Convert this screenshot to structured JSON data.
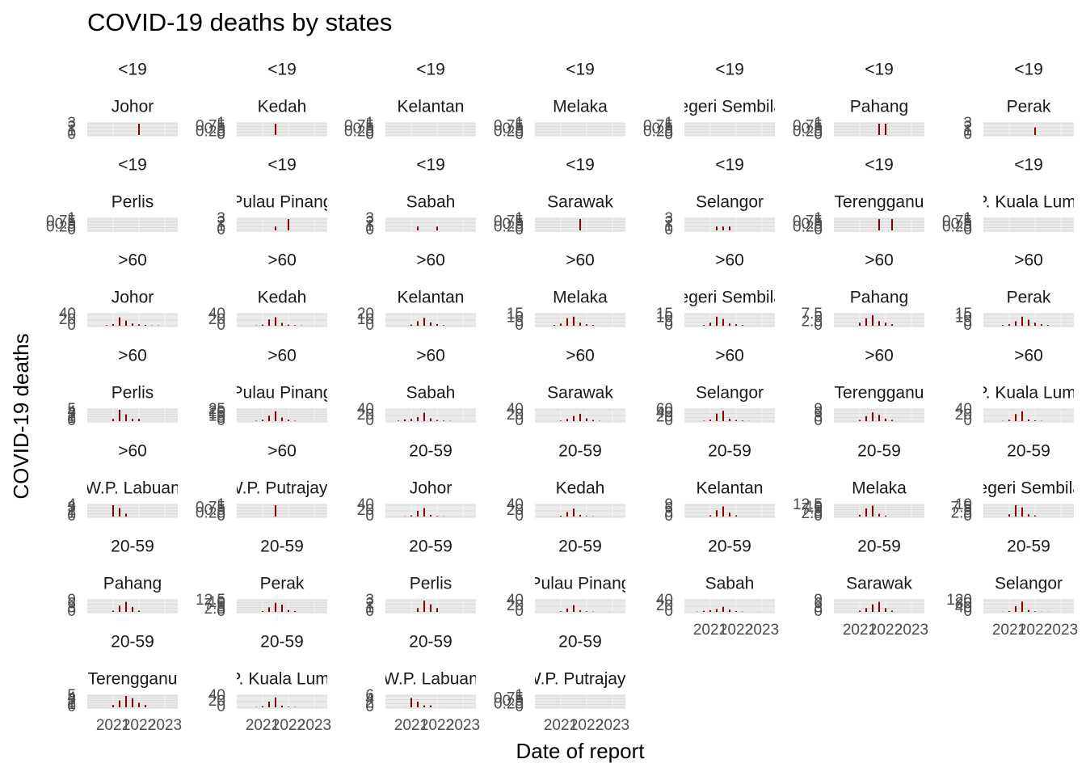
{
  "chart_data": {
    "type": "bar",
    "title": "COVID-19 deaths by states",
    "x_label": "Date of report",
    "y_label": "COVID-19 deaths",
    "color": "#8b0000",
    "x": [
      2020.25,
      2020.5,
      2020.75,
      2021,
      2021.25,
      2021.5,
      2021.75,
      2022,
      2022.25,
      2022.5,
      2022.75,
      2023
    ],
    "xlim": [
      2020,
      2023.5
    ],
    "xticks": [
      2021,
      2022,
      2023
    ],
    "panels": [
      {
        "age": "<19",
        "state": "Johor",
        "ylim": [
          0,
          3
        ],
        "yticks": [
          0,
          1,
          2,
          3
        ],
        "values": [
          0,
          0,
          0,
          0,
          0,
          0,
          0,
          3,
          0,
          0,
          0,
          0
        ]
      },
      {
        "age": "<19",
        "state": "Kedah",
        "ylim": [
          0,
          1
        ],
        "yticks": [
          0,
          0.25,
          0.5,
          0.75,
          1
        ],
        "values": [
          0,
          0,
          0,
          0,
          0,
          1,
          0,
          0,
          0,
          0,
          0,
          0
        ]
      },
      {
        "age": "<19",
        "state": "Kelantan",
        "ylim": [
          0,
          1
        ],
        "yticks": [
          0,
          0.25,
          0.5,
          0.75,
          1
        ],
        "values": [
          0,
          0,
          0,
          0,
          0,
          0,
          0,
          0,
          0,
          0,
          0,
          0
        ]
      },
      {
        "age": "<19",
        "state": "Melaka",
        "ylim": [
          0,
          1
        ],
        "yticks": [
          0,
          0.25,
          0.5,
          0.75,
          1
        ],
        "values": [
          0,
          0,
          0,
          0,
          0,
          0,
          0,
          0,
          0,
          0,
          0,
          0
        ]
      },
      {
        "age": "<19",
        "state": "Negeri Sembilan",
        "ylim": [
          0,
          1
        ],
        "yticks": [
          0,
          0.25,
          0.5,
          0.75,
          1
        ],
        "values": [
          0,
          0,
          0,
          0,
          0,
          0,
          0,
          0,
          0,
          0,
          0,
          0
        ]
      },
      {
        "age": "<19",
        "state": "Pahang",
        "ylim": [
          0,
          1
        ],
        "yticks": [
          0,
          0.25,
          0.5,
          0.75,
          1
        ],
        "values": [
          0,
          0,
          0,
          0,
          0,
          0,
          1,
          1,
          0,
          0,
          0,
          0
        ]
      },
      {
        "age": "<19",
        "state": "Perak",
        "ylim": [
          0,
          3
        ],
        "yticks": [
          0,
          1,
          2,
          3
        ],
        "values": [
          0,
          0,
          0,
          0,
          0,
          0,
          0,
          2,
          0,
          0,
          0,
          0
        ]
      },
      {
        "age": "<19",
        "state": "Perlis",
        "ylim": [
          0,
          1
        ],
        "yticks": [
          0,
          0.25,
          0.5,
          0.75,
          1
        ],
        "values": [
          0,
          0,
          0,
          0,
          0,
          0,
          0,
          0,
          0,
          0,
          0,
          0
        ]
      },
      {
        "age": "<19",
        "state": "Pulau Pinang",
        "ylim": [
          0,
          3
        ],
        "yticks": [
          0,
          1,
          2,
          3
        ],
        "values": [
          0,
          0,
          0,
          0,
          0,
          1,
          0,
          3,
          0,
          0,
          0,
          0
        ]
      },
      {
        "age": "<19",
        "state": "Sabah",
        "ylim": [
          0,
          3
        ],
        "yticks": [
          0,
          1,
          2,
          3
        ],
        "values": [
          0,
          0,
          0,
          0,
          1,
          0,
          0,
          1,
          0,
          0,
          0,
          0
        ]
      },
      {
        "age": "<19",
        "state": "Sarawak",
        "ylim": [
          0,
          1
        ],
        "yticks": [
          0,
          0.25,
          0.5,
          0.75,
          1
        ],
        "values": [
          0,
          0,
          0,
          0,
          0,
          0,
          1,
          0,
          0,
          0,
          0,
          0
        ]
      },
      {
        "age": "<19",
        "state": "Selangor",
        "ylim": [
          0,
          3
        ],
        "yticks": [
          0,
          1,
          2,
          3
        ],
        "values": [
          0,
          0,
          0,
          0,
          1,
          1,
          1,
          0,
          0,
          0,
          0,
          0
        ]
      },
      {
        "age": "<19",
        "state": "Terengganu",
        "ylim": [
          0,
          1
        ],
        "yticks": [
          0,
          0.25,
          0.5,
          0.75,
          1
        ],
        "values": [
          0,
          0,
          0,
          0,
          0,
          0,
          1,
          0,
          1,
          0,
          0,
          0
        ]
      },
      {
        "age": "<19",
        "state": "W.P. Kuala Lumpur",
        "ylim": [
          0,
          1
        ],
        "yticks": [
          0,
          0.25,
          0.5,
          0.75,
          1
        ],
        "values": [
          0,
          0,
          0,
          0,
          0,
          0,
          0,
          0,
          0,
          0,
          0,
          0
        ]
      },
      {
        "age": ">60",
        "state": "Johor",
        "ylim": [
          0,
          40
        ],
        "yticks": [
          0,
          20,
          40
        ],
        "values": [
          0,
          0,
          2,
          6,
          30,
          18,
          8,
          5,
          3,
          1,
          1,
          0
        ]
      },
      {
        "age": ">60",
        "state": "Kedah",
        "ylim": [
          0,
          40
        ],
        "yticks": [
          0,
          20,
          40
        ],
        "values": [
          0,
          0,
          1,
          4,
          22,
          30,
          10,
          4,
          2,
          1,
          0,
          0
        ]
      },
      {
        "age": ">60",
        "state": "Kelantan",
        "ylim": [
          0,
          20
        ],
        "yticks": [
          0,
          10,
          20
        ],
        "values": [
          0,
          0,
          0,
          2,
          8,
          14,
          6,
          3,
          1,
          0,
          0,
          0
        ]
      },
      {
        "age": ">60",
        "state": "Melaka",
        "ylim": [
          0,
          15
        ],
        "yticks": [
          0,
          5,
          10,
          15
        ],
        "values": [
          0,
          0,
          1,
          3,
          10,
          12,
          4,
          2,
          1,
          0,
          0,
          0
        ]
      },
      {
        "age": ">60",
        "state": "Negeri Sembilan",
        "ylim": [
          0,
          15
        ],
        "yticks": [
          0,
          5,
          10,
          15
        ],
        "values": [
          0,
          0,
          1,
          4,
          12,
          9,
          3,
          2,
          1,
          0,
          0,
          0
        ]
      },
      {
        "age": ">60",
        "state": "Pahang",
        "ylim": [
          0,
          7.5
        ],
        "yticks": [
          0,
          2.5,
          5,
          7.5
        ],
        "values": [
          0,
          0,
          0,
          2,
          5,
          7,
          3,
          2,
          1,
          0,
          0,
          0
        ]
      },
      {
        "age": ">60",
        "state": "Perak",
        "ylim": [
          0,
          15
        ],
        "yticks": [
          0,
          5,
          10,
          15
        ],
        "values": [
          0,
          0,
          1,
          2,
          6,
          12,
          8,
          4,
          2,
          1,
          0,
          0
        ]
      },
      {
        "age": ">60",
        "state": "Perlis",
        "ylim": [
          0,
          5
        ],
        "yticks": [
          0,
          1,
          2,
          3,
          4,
          5
        ],
        "values": [
          0,
          0,
          0,
          1,
          5,
          3,
          1,
          1,
          0,
          0,
          0,
          0
        ]
      },
      {
        "age": ">60",
        "state": "Pulau Pinang",
        "ylim": [
          0,
          25
        ],
        "yticks": [
          0,
          5,
          10,
          15,
          20,
          25
        ],
        "values": [
          0,
          0,
          1,
          3,
          12,
          22,
          8,
          3,
          1,
          0,
          0,
          0
        ]
      },
      {
        "age": ">60",
        "state": "Sabah",
        "ylim": [
          0,
          40
        ],
        "yticks": [
          0,
          20,
          40
        ],
        "values": [
          0,
          2,
          6,
          8,
          14,
          30,
          10,
          4,
          2,
          1,
          0,
          0
        ]
      },
      {
        "age": ">60",
        "state": "Sarawak",
        "ylim": [
          0,
          40
        ],
        "yticks": [
          0,
          20,
          40
        ],
        "values": [
          0,
          0,
          0,
          2,
          8,
          18,
          26,
          10,
          4,
          1,
          0,
          0
        ]
      },
      {
        "age": ">60",
        "state": "Selangor",
        "ylim": [
          0,
          60
        ],
        "yticks": [
          0,
          20,
          40,
          60
        ],
        "values": [
          0,
          0,
          2,
          8,
          40,
          55,
          12,
          6,
          3,
          1,
          0,
          0
        ]
      },
      {
        "age": ">60",
        "state": "Terengganu",
        "ylim": [
          0,
          9
        ],
        "yticks": [
          0,
          3,
          6,
          9
        ],
        "values": [
          0,
          0,
          0,
          1,
          4,
          7,
          5,
          2,
          1,
          0,
          0,
          0
        ]
      },
      {
        "age": ">60",
        "state": "W.P. Kuala Lumpur",
        "ylim": [
          0,
          40
        ],
        "yticks": [
          0,
          20,
          40
        ],
        "values": [
          0,
          0,
          1,
          5,
          25,
          35,
          6,
          3,
          1,
          0,
          0,
          0
        ]
      },
      {
        "age": ">60",
        "state": "W.P. Labuan",
        "ylim": [
          0,
          4
        ],
        "yticks": [
          0,
          1,
          2,
          3,
          4
        ],
        "values": [
          0,
          0,
          0,
          4,
          3,
          1,
          0,
          0,
          0,
          0,
          0,
          0
        ]
      },
      {
        "age": ">60",
        "state": "W.P. Putrajaya",
        "ylim": [
          0,
          1
        ],
        "yticks": [
          0,
          0.25,
          0.5,
          0.75,
          1
        ],
        "values": [
          0,
          0,
          0,
          0,
          0,
          1,
          0,
          0,
          0,
          0,
          0,
          0
        ]
      },
      {
        "age": "20-59",
        "state": "Johor",
        "ylim": [
          0,
          40
        ],
        "yticks": [
          0,
          20,
          40
        ],
        "values": [
          0,
          0,
          1,
          4,
          20,
          30,
          6,
          2,
          1,
          0,
          0,
          0
        ]
      },
      {
        "age": "20-59",
        "state": "Kedah",
        "ylim": [
          0,
          40
        ],
        "yticks": [
          0,
          20,
          40
        ],
        "values": [
          0,
          0,
          0,
          3,
          16,
          28,
          6,
          2,
          1,
          0,
          0,
          0
        ]
      },
      {
        "age": "20-59",
        "state": "Kelantan",
        "ylim": [
          0,
          9
        ],
        "yticks": [
          0,
          3,
          6,
          9
        ],
        "values": [
          0,
          0,
          0,
          1,
          5,
          8,
          3,
          1,
          0,
          0,
          0,
          0
        ]
      },
      {
        "age": "20-59",
        "state": "Melaka",
        "ylim": [
          0,
          12.5
        ],
        "yticks": [
          0,
          2.5,
          5,
          7.5,
          10,
          12.5
        ],
        "values": [
          0,
          0,
          0,
          2,
          9,
          12,
          3,
          1,
          0,
          0,
          0,
          0
        ]
      },
      {
        "age": "20-59",
        "state": "Negeri Sembilan",
        "ylim": [
          0,
          10
        ],
        "yticks": [
          0,
          2.5,
          5,
          7.5,
          10
        ],
        "values": [
          0,
          0,
          0,
          2,
          10,
          8,
          2,
          1,
          0,
          0,
          0,
          0
        ]
      },
      {
        "age": "20-59",
        "state": "Pahang",
        "ylim": [
          0,
          9
        ],
        "yticks": [
          0,
          3,
          6,
          9
        ],
        "values": [
          0,
          0,
          0,
          1,
          5,
          8,
          4,
          1,
          0,
          0,
          0,
          0
        ]
      },
      {
        "age": "20-59",
        "state": "Perak",
        "ylim": [
          0,
          12.5
        ],
        "yticks": [
          0,
          2.5,
          5,
          7.5,
          10,
          12.5
        ],
        "values": [
          0,
          0,
          0,
          1,
          5,
          10,
          8,
          2,
          1,
          0,
          0,
          0
        ]
      },
      {
        "age": "20-59",
        "state": "Perlis",
        "ylim": [
          0,
          3
        ],
        "yticks": [
          0,
          1,
          2,
          3
        ],
        "values": [
          0,
          0,
          0,
          0,
          1,
          3,
          2,
          1,
          0,
          0,
          0,
          0
        ]
      },
      {
        "age": "20-59",
        "state": "Pulau Pinang",
        "ylim": [
          0,
          40
        ],
        "yticks": [
          0,
          20,
          40
        ],
        "values": [
          0,
          0,
          0,
          2,
          12,
          24,
          6,
          2,
          1,
          0,
          0,
          0
        ]
      },
      {
        "age": "20-59",
        "state": "Sabah",
        "ylim": [
          0,
          40
        ],
        "yticks": [
          0,
          20,
          40
        ],
        "values": [
          0,
          1,
          4,
          6,
          10,
          18,
          8,
          3,
          1,
          0,
          0,
          0
        ]
      },
      {
        "age": "20-59",
        "state": "Sarawak",
        "ylim": [
          0,
          9
        ],
        "yticks": [
          0,
          3,
          6,
          9
        ],
        "values": [
          0,
          0,
          0,
          1,
          3,
          6,
          8,
          3,
          1,
          0,
          0,
          0
        ]
      },
      {
        "age": "20-59",
        "state": "Selangor",
        "ylim": [
          0,
          120
        ],
        "yticks": [
          0,
          40,
          80,
          120
        ],
        "values": [
          0,
          0,
          2,
          10,
          60,
          110,
          20,
          6,
          2,
          1,
          0,
          0
        ]
      },
      {
        "age": "20-59",
        "state": "Terengganu",
        "ylim": [
          0,
          5
        ],
        "yticks": [
          0,
          1,
          2,
          3,
          4,
          5
        ],
        "values": [
          0,
          0,
          0,
          1,
          3,
          5,
          4,
          2,
          1,
          0,
          0,
          0
        ]
      },
      {
        "age": "20-59",
        "state": "W.P. Kuala Lumpur",
        "ylim": [
          0,
          40
        ],
        "yticks": [
          0,
          20,
          40
        ],
        "values": [
          0,
          0,
          1,
          4,
          20,
          35,
          6,
          2,
          1,
          0,
          0,
          0
        ]
      },
      {
        "age": "20-59",
        "state": "W.P. Labuan",
        "ylim": [
          0,
          6
        ],
        "yticks": [
          0,
          2,
          4,
          6
        ],
        "values": [
          0,
          0,
          0,
          5,
          3,
          1,
          1,
          0,
          0,
          0,
          0,
          0
        ]
      },
      {
        "age": "20-59",
        "state": "W.P. Putrajaya",
        "ylim": [
          0,
          1
        ],
        "yticks": [
          0,
          0.25,
          0.5,
          0.75,
          1
        ],
        "values": [
          0,
          0,
          0,
          0,
          0,
          0,
          0,
          0,
          0,
          0,
          0,
          0
        ]
      }
    ]
  }
}
